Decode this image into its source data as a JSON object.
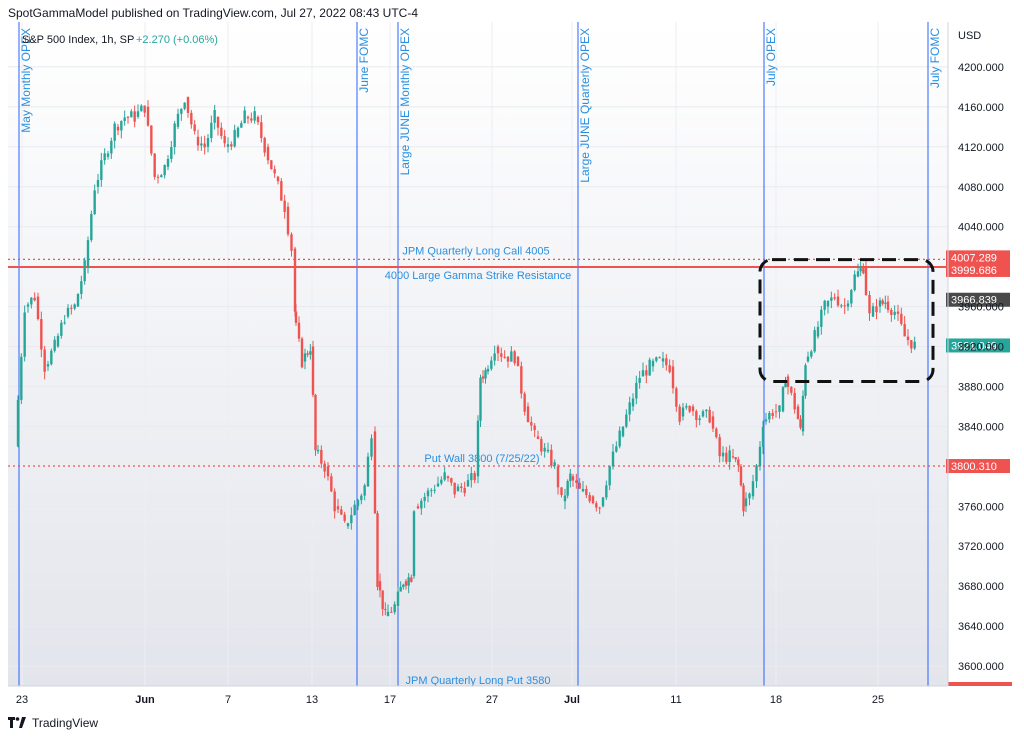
{
  "header": {
    "published": "SpotGammaModel published on TradingView.com, Jul 27, 2022 08:43 UTC-4"
  },
  "footer": {
    "brand": "TradingView"
  },
  "chart_data": {
    "type": "candlestick",
    "symbol_line": {
      "name": "S&P 500 Index, 1h, SP",
      "change": "+2.270 (+0.06%)"
    },
    "currency": "USD",
    "price_ticks": [
      "4200.000",
      "4160.000",
      "4120.000",
      "4080.000",
      "4040.000",
      "3960.000",
      "3920.000",
      "3880.000",
      "3840.000",
      "3760.000",
      "3720.000",
      "3680.000",
      "3640.000",
      "3600.000"
    ],
    "x_ticks": [
      "23",
      "Jun",
      "7",
      "13",
      "17",
      "27",
      "Jul",
      "11",
      "18",
      "25"
    ],
    "price_range": [
      3580,
      4245
    ],
    "x_range": [
      0,
      940
    ],
    "vertical_lines": [
      {
        "x": 11,
        "label": "May Monthly OPEX"
      },
      {
        "x": 349,
        "label": "June FOMC"
      },
      {
        "x": 390,
        "label": "Large JUNE Monthly OPEX"
      },
      {
        "x": 570,
        "label": "Large JUNE Quarterly OPEX"
      },
      {
        "x": 756,
        "label": "July OPEX"
      },
      {
        "x": 920,
        "label": "July FOMC"
      }
    ],
    "horizontal_levels": [
      {
        "price": 4007.289,
        "label": "JPM Quarterly Long Call 4005",
        "style": "dotted",
        "tag": "4007.289",
        "color": "#ef5350"
      },
      {
        "price": 3999.686,
        "label": "4000 Large Gamma Strike Resistance",
        "style": "solid",
        "tag": "3999.686",
        "color": "#ef5350"
      },
      {
        "price": 3800.31,
        "label": "Put Wall 3800 (7/25/22)",
        "style": "dotted",
        "tag": "3800.310",
        "color": "#ef5350"
      },
      {
        "price": 3580,
        "label": "JPM Quarterly Long Put 3580",
        "style": "solid",
        "tag": "",
        "color": "#ef5350"
      }
    ],
    "price_tags": [
      {
        "price": 3966.839,
        "label": "3966.839",
        "color": "#4a4a4a"
      },
      {
        "price": 3921.049,
        "label": "3921.049",
        "color": "#26a69a"
      }
    ],
    "colors": {
      "up": "#26a69a",
      "down": "#ef5350",
      "vline": "#2962ff",
      "annot": "#2a8fe0"
    },
    "series": [
      [
        10,
        3820
      ],
      [
        20,
        3960
      ],
      [
        30,
        3970
      ],
      [
        40,
        3900
      ],
      [
        50,
        3920
      ],
      [
        60,
        3950
      ],
      [
        70,
        3960
      ],
      [
        80,
        4000
      ],
      [
        90,
        4080
      ],
      [
        100,
        4110
      ],
      [
        110,
        4140
      ],
      [
        120,
        4150
      ],
      [
        130,
        4150
      ],
      [
        140,
        4160
      ],
      [
        150,
        4090
      ],
      [
        160,
        4100
      ],
      [
        170,
        4140
      ],
      [
        180,
        4170
      ],
      [
        190,
        4130
      ],
      [
        200,
        4120
      ],
      [
        210,
        4150
      ],
      [
        220,
        4120
      ],
      [
        230,
        4130
      ],
      [
        240,
        4150
      ],
      [
        250,
        4150
      ],
      [
        260,
        4120
      ],
      [
        270,
        4090
      ],
      [
        280,
        4060
      ],
      [
        287,
        4018
      ],
      [
        288,
        3955
      ],
      [
        297,
        3905
      ],
      [
        305,
        3920
      ],
      [
        310,
        3815
      ],
      [
        320,
        3800
      ],
      [
        330,
        3760
      ],
      [
        340,
        3740
      ],
      [
        350,
        3760
      ],
      [
        360,
        3780
      ],
      [
        367,
        3835
      ],
      [
        372,
        3685
      ],
      [
        380,
        3650
      ],
      [
        390,
        3660
      ],
      [
        398,
        3685
      ],
      [
        406,
        3690
      ],
      [
        410,
        3760
      ],
      [
        420,
        3770
      ],
      [
        430,
        3780
      ],
      [
        440,
        3790
      ],
      [
        450,
        3775
      ],
      [
        460,
        3780
      ],
      [
        470,
        3790
      ],
      [
        475,
        3890
      ],
      [
        480,
        3895
      ],
      [
        490,
        3920
      ],
      [
        500,
        3910
      ],
      [
        510,
        3910
      ],
      [
        520,
        3860
      ],
      [
        530,
        3830
      ],
      [
        540,
        3815
      ],
      [
        550,
        3800
      ],
      [
        557,
        3765
      ],
      [
        565,
        3790
      ],
      [
        575,
        3775
      ],
      [
        585,
        3770
      ],
      [
        595,
        3760
      ],
      [
        605,
        3800
      ],
      [
        615,
        3830
      ],
      [
        625,
        3860
      ],
      [
        635,
        3890
      ],
      [
        645,
        3900
      ],
      [
        655,
        3905
      ],
      [
        665,
        3900
      ],
      [
        675,
        3850
      ],
      [
        685,
        3860
      ],
      [
        695,
        3850
      ],
      [
        705,
        3850
      ],
      [
        715,
        3810
      ],
      [
        725,
        3810
      ],
      [
        733,
        3800
      ],
      [
        738,
        3760
      ],
      [
        745,
        3770
      ],
      [
        752,
        3800
      ],
      [
        758,
        3845
      ],
      [
        768,
        3855
      ],
      [
        775,
        3855
      ],
      [
        780,
        3890
      ],
      [
        790,
        3860
      ],
      [
        795,
        3835
      ],
      [
        800,
        3905
      ],
      [
        810,
        3930
      ],
      [
        820,
        3960
      ],
      [
        830,
        3970
      ],
      [
        840,
        3960
      ],
      [
        850,
        3990
      ],
      [
        858,
        4000
      ],
      [
        865,
        3950
      ],
      [
        872,
        3960
      ],
      [
        880,
        3965
      ],
      [
        890,
        3955
      ],
      [
        900,
        3930
      ],
      [
        910,
        3921
      ]
    ],
    "highlight_box": {
      "x_from": 752,
      "x_to": 925,
      "price_from": 3885,
      "price_to": 4007
    }
  }
}
